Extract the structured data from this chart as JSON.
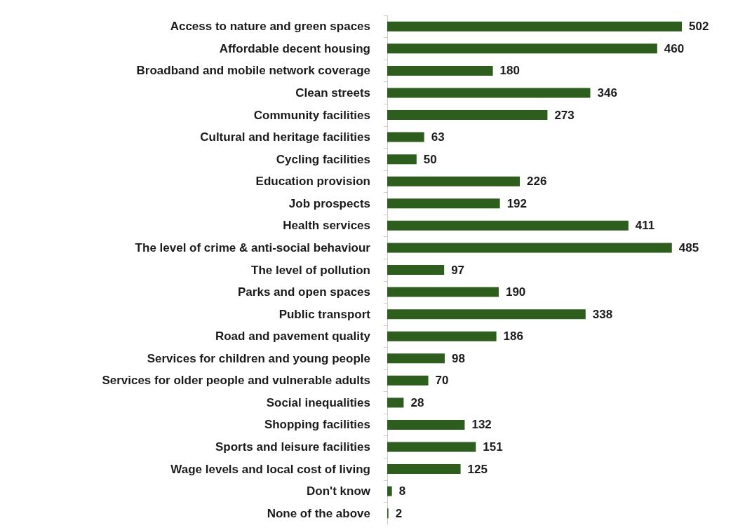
{
  "chart_data": {
    "type": "bar",
    "orientation": "horizontal",
    "data_labels": true,
    "color": "#2e5e1e",
    "categories": [
      "Access to nature and green spaces",
      "Affordable decent housing",
      "Broadband and mobile network coverage",
      "Clean streets",
      "Community facilities",
      "Cultural and heritage facilities",
      "Cycling facilities",
      "Education provision",
      "Job prospects",
      "Health services",
      "The level of crime & anti-social behaviour",
      "The level of pollution",
      "Parks and open spaces",
      "Public transport",
      "Road and pavement quality",
      "Services for children and young people",
      "Services for older people and vulnerable adults",
      "Social inequalities",
      "Shopping facilities",
      "Sports and leisure facilities",
      "Wage levels and local cost of living",
      "Don't know",
      "None of the above"
    ],
    "values": [
      502,
      460,
      180,
      346,
      273,
      63,
      50,
      226,
      192,
      411,
      485,
      97,
      190,
      338,
      186,
      98,
      70,
      28,
      132,
      151,
      125,
      8,
      2
    ]
  }
}
